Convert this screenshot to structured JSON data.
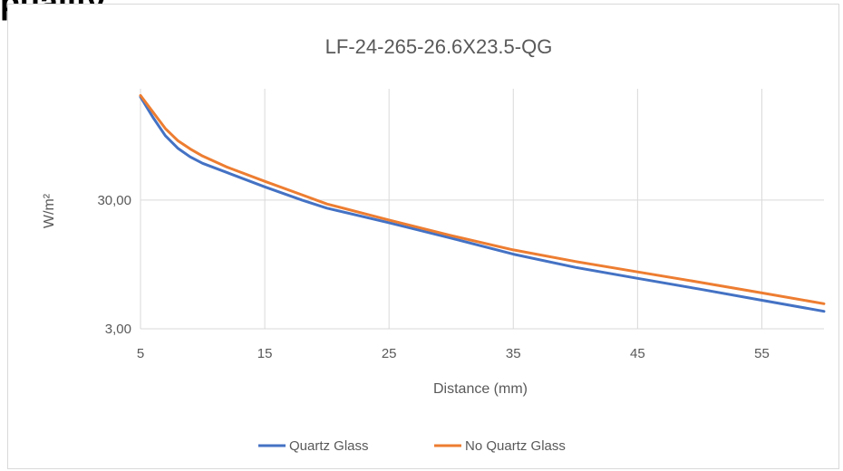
{
  "page_fragment": "puality",
  "chart_data": {
    "type": "line",
    "title": "LF-24-265-26.6X23.5-QG",
    "xlabel": "Distance (mm)",
    "ylabel": "W/m²",
    "xlim": [
      5,
      60
    ],
    "ylim_log": [
      3,
      220
    ],
    "y_scale": "log",
    "x_ticks": [
      5,
      15,
      25,
      35,
      45,
      55
    ],
    "y_ticks": [
      3,
      30
    ],
    "y_tick_labels": [
      "3,00",
      "30,00"
    ],
    "grid": true,
    "legend_position": "bottom",
    "series": [
      {
        "name": "Quartz Glass",
        "color": "#4472c4",
        "x": [
          5,
          6,
          7,
          8,
          9,
          10,
          12,
          15,
          18,
          20,
          25,
          30,
          35,
          40,
          45,
          50,
          55,
          60
        ],
        "y": [
          190,
          132,
          95,
          76,
          65,
          58,
          49,
          38,
          30,
          26,
          20,
          15.2,
          11.4,
          9.0,
          7.4,
          6.1,
          5.0,
          4.1
        ]
      },
      {
        "name": "No Quartz Glass",
        "color": "#ed7d31",
        "x": [
          5,
          6,
          7,
          8,
          9,
          10,
          12,
          15,
          18,
          20,
          25,
          30,
          35,
          40,
          45,
          50,
          55,
          60
        ],
        "y": [
          195,
          145,
          108,
          87,
          75,
          66,
          54,
          42,
          33,
          28,
          21,
          15.9,
          12.3,
          10.0,
          8.3,
          6.9,
          5.7,
          4.7
        ]
      }
    ]
  }
}
